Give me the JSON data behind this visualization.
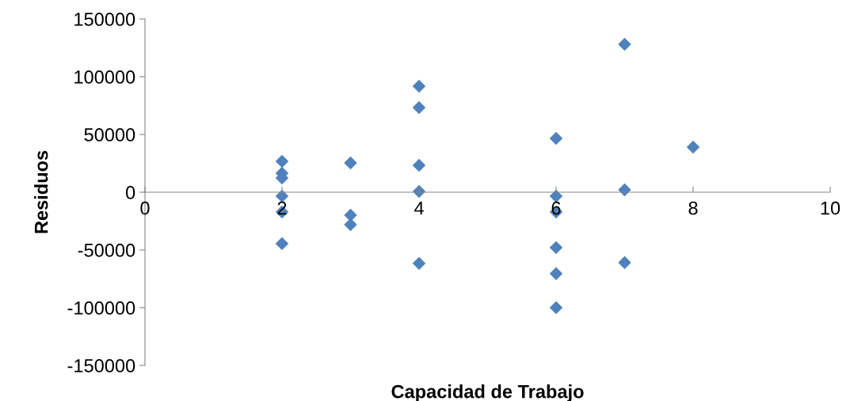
{
  "chart_data": {
    "type": "scatter",
    "xlabel": "Capacidad de Trabajo",
    "ylabel": "Residuos",
    "x": [
      2,
      2,
      2,
      2,
      2,
      2,
      3,
      3,
      3,
      4,
      4,
      4,
      4,
      4,
      6,
      6,
      6,
      6,
      6,
      6,
      7,
      7,
      7,
      8
    ],
    "series": [
      {
        "color": "#4f81bd",
        "values": [
          26700,
          16400,
          12300,
          -3400,
          -17100,
          -44500,
          25300,
          -19900,
          -28100,
          91800,
          73300,
          23300,
          700,
          -61600,
          46600,
          -3400,
          -17100,
          -47900,
          -70500,
          -100000,
          128100,
          2100,
          -61000,
          39000
        ]
      }
    ],
    "marker": "diamond",
    "xlim": [
      0,
      10
    ],
    "xticks": [
      0,
      2,
      4,
      6,
      8,
      10
    ],
    "ylim": [
      -150000,
      150000
    ],
    "yticks": [
      -150000,
      -100000,
      -50000,
      0,
      50000,
      100000,
      150000
    ],
    "grid": false,
    "legend": false
  }
}
